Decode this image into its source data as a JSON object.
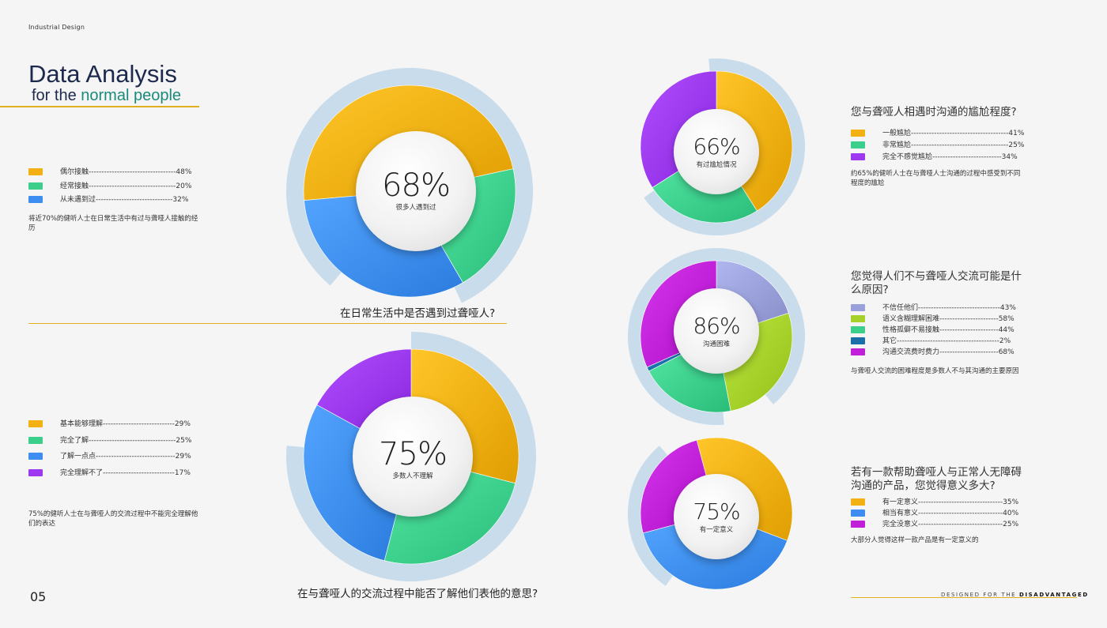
{
  "header": {
    "tag": "Industrial Design",
    "title": "Data Analysis",
    "subtitle_plain": "for the",
    "subtitle_accent": "normal people"
  },
  "footer": {
    "prefix": "DESIGNED FOR THE",
    "emph": "DISADVANTAGED",
    "page": "05"
  },
  "colors": {
    "accent": "#e1b020",
    "title": "#1d2a4d",
    "ring": "#b9d3e8"
  },
  "charts": {
    "c1": {
      "center_value": "68%",
      "center_label": "很多人遇到过",
      "question": "在日常生活中是否遇到过聋哑人?",
      "description": "将近70%的健听人士在日常生活中有过与聋哑人接触的经历",
      "legend": [
        {
          "label": "偶尔接触",
          "dashes": "----------------------------------",
          "pct": "48%",
          "color": "#f2b013"
        },
        {
          "label": "经常接触",
          "dashes": "----------------------------------",
          "pct": "20%",
          "color": "#3ccf8c"
        },
        {
          "label": "从未遇到过",
          "dashes": "------------------------------",
          "pct": "32%",
          "color": "#3d8ef0"
        }
      ]
    },
    "c2": {
      "center_value": "75%",
      "center_label": "多数人不理解",
      "question": "在与聋哑人的交流过程中能否了解他们表他的意思?",
      "description": "75%的健听人士在与聋哑人的交流过程中不能完全理解他们的表达",
      "legend": [
        {
          "label": "基本能够理解",
          "dashes": "----------------------------",
          "pct": "29%",
          "color": "#f2b013"
        },
        {
          "label": "完全了解",
          "dashes": "----------------------------------",
          "pct": "25%",
          "color": "#3ccf8c"
        },
        {
          "label": "了解一点点",
          "dashes": "-------------------------------",
          "pct": "29%",
          "color": "#3d8ef0"
        },
        {
          "label": "完全理解不了",
          "dashes": "----------------------------",
          "pct": "17%",
          "color": "#9b38f0"
        }
      ]
    },
    "c3": {
      "center_value": "66%",
      "center_label": "有过尴尬情况",
      "question": "您与聋哑人相遇时沟通的尴尬程度?",
      "description": "约65%的健听人士在与聋哑人士沟通的过程中感受到不同程度的尴尬",
      "legend": [
        {
          "label": "一般尴尬",
          "dashes": "--------------------------------------",
          "pct": "41%",
          "color": "#f2b013"
        },
        {
          "label": "非常尴尬",
          "dashes": "--------------------------------------",
          "pct": "25%",
          "color": "#3ccf8c"
        },
        {
          "label": "完全不感觉尴尬",
          "dashes": "---------------------------",
          "pct": "34%",
          "color": "#9b38f0"
        }
      ]
    },
    "c4": {
      "center_value": "86%",
      "center_label": "沟通困难",
      "question": "您觉得人们不与聋哑人交流可能是什么原因?",
      "description": "与聋哑人交流的困难程度是多数人不与其沟通的主要原因",
      "legend": [
        {
          "label": "不信任他们",
          "dashes": "--------------------------------",
          "pct": "43%",
          "color": "#9aa0da"
        },
        {
          "label": "语义含糊理解困难",
          "dashes": "-----------------------",
          "pct": "58%",
          "color": "#a6d12a"
        },
        {
          "label": "性格孤僻不易接触",
          "dashes": "-----------------------",
          "pct": "44%",
          "color": "#3ccf8c"
        },
        {
          "label": "其它",
          "dashes": "----------------------------------------",
          "pct": "2%",
          "color": "#1a6fa8"
        },
        {
          "label": "沟通交流费时费力",
          "dashes": "-----------------------",
          "pct": "68%",
          "color": "#c020d8"
        }
      ]
    },
    "c5": {
      "center_value": "75%",
      "center_label": "有一定意义",
      "question": "若有一款帮助聋哑人与正常人无障碍沟通的产品，您觉得意义多大?",
      "description": "大部分人觉得这样一款产品是有一定意义的",
      "legend": [
        {
          "label": "有一定意义",
          "dashes": "---------------------------------",
          "pct": "35%",
          "color": "#f2b013"
        },
        {
          "label": "相当有意义",
          "dashes": "---------------------------------",
          "pct": "40%",
          "color": "#3d8ef0"
        },
        {
          "label": "完全没意义",
          "dashes": "---------------------------------",
          "pct": "25%",
          "color": "#c020d8"
        }
      ]
    }
  },
  "chart_data": [
    {
      "type": "pie",
      "question": "在日常生活中是否遇到过聋哑人?",
      "categories": [
        "偶尔接触",
        "经常接触",
        "从未遇到过"
      ],
      "values": [
        48,
        20,
        32
      ],
      "unit": "%",
      "center": "68%"
    },
    {
      "type": "pie",
      "question": "在与聋哑人的交流过程中能否了解他们表他的意思?",
      "categories": [
        "基本能够理解",
        "完全了解",
        "了解一点点",
        "完全理解不了"
      ],
      "values": [
        29,
        25,
        29,
        17
      ],
      "unit": "%",
      "center": "75%"
    },
    {
      "type": "pie",
      "question": "您与聋哑人相遇时沟通的尴尬程度?",
      "categories": [
        "一般尴尬",
        "非常尴尬",
        "完全不感觉尴尬"
      ],
      "values": [
        41,
        25,
        34
      ],
      "unit": "%",
      "center": "66%"
    },
    {
      "type": "pie",
      "question": "您觉得人们不与聋哑人交流可能是什么原因?",
      "categories": [
        "不信任他们",
        "语义含糊理解困难",
        "性格孤僻不易接触",
        "其它",
        "沟通交流费时费力"
      ],
      "values": [
        43,
        58,
        44,
        2,
        68
      ],
      "unit": "%",
      "center": "86%"
    },
    {
      "type": "pie",
      "question": "若有一款帮助聋哑人与正常人无障碍沟通的产品，您觉得意义多大?",
      "categories": [
        "有一定意义",
        "相当有意义",
        "完全没意义"
      ],
      "values": [
        35,
        40,
        25
      ],
      "unit": "%",
      "center": "75%"
    }
  ]
}
